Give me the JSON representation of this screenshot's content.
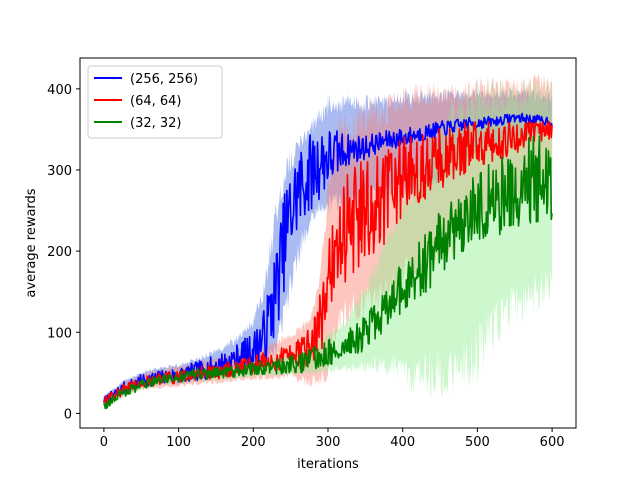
{
  "chart_data": {
    "type": "line",
    "title": "",
    "xlabel": "iterations",
    "ylabel": "average rewards",
    "xlim": [
      -32,
      632
    ],
    "ylim": [
      -18,
      438
    ],
    "x_ticks": [
      0,
      100,
      200,
      300,
      400,
      500,
      600
    ],
    "y_ticks": [
      0,
      100,
      200,
      300,
      400
    ],
    "x_tick_labels": [
      "0",
      "100",
      "200",
      "300",
      "400",
      "500",
      "600"
    ],
    "y_tick_labels": [
      "0",
      "100",
      "200",
      "300",
      "400"
    ],
    "grid": false,
    "legend_position": "upper-left",
    "x_start": 0,
    "x_end": 600,
    "series": [
      {
        "name": "(256, 256)",
        "color": "#0000ff",
        "band_color": "#4169e1",
        "x": [
          0,
          25,
          50,
          75,
          100,
          125,
          150,
          175,
          200,
          215,
          230,
          245,
          260,
          275,
          290,
          300,
          325,
          350,
          375,
          400,
          425,
          450,
          475,
          500,
          525,
          550,
          575,
          600
        ],
        "values": [
          15,
          30,
          40,
          45,
          47,
          52,
          58,
          66,
          78,
          95,
          150,
          230,
          275,
          295,
          310,
          315,
          325,
          328,
          336,
          340,
          345,
          350,
          355,
          358,
          360,
          365,
          362,
          360
        ],
        "noise": [
          5,
          8,
          8,
          8,
          10,
          12,
          14,
          18,
          22,
          35,
          55,
          60,
          55,
          50,
          45,
          40,
          20,
          15,
          12,
          12,
          10,
          10,
          8,
          8,
          6,
          6,
          6,
          6
        ],
        "band_upper": [
          22,
          40,
          52,
          58,
          62,
          70,
          80,
          95,
          120,
          170,
          260,
          320,
          340,
          360,
          380,
          395,
          395,
          395,
          395,
          400,
          400,
          400,
          400,
          400,
          400,
          400,
          400,
          395
        ],
        "band_lower": [
          10,
          22,
          30,
          35,
          35,
          38,
          42,
          48,
          55,
          55,
          65,
          120,
          180,
          220,
          240,
          245,
          250,
          255,
          260,
          265,
          270,
          280,
          300,
          320,
          330,
          335,
          340,
          340
        ]
      },
      {
        "name": "(64, 64)",
        "color": "#ff0000",
        "band_color": "#fa8072",
        "x": [
          0,
          25,
          50,
          75,
          100,
          125,
          150,
          175,
          200,
          225,
          250,
          275,
          290,
          300,
          310,
          325,
          350,
          375,
          400,
          425,
          450,
          475,
          500,
          525,
          550,
          575,
          600
        ],
        "values": [
          15,
          28,
          38,
          42,
          45,
          48,
          52,
          55,
          60,
          65,
          70,
          80,
          110,
          150,
          200,
          230,
          250,
          260,
          290,
          305,
          315,
          325,
          330,
          335,
          340,
          345,
          350
        ],
        "noise": [
          5,
          7,
          7,
          8,
          8,
          9,
          10,
          10,
          12,
          14,
          18,
          25,
          40,
          60,
          70,
          70,
          65,
          60,
          50,
          45,
          40,
          35,
          30,
          25,
          20,
          15,
          12
        ],
        "band_upper": [
          20,
          38,
          50,
          56,
          60,
          65,
          70,
          75,
          80,
          90,
          100,
          120,
          180,
          300,
          370,
          380,
          395,
          400,
          405,
          410,
          410,
          410,
          415,
          415,
          415,
          420,
          415
        ],
        "band_lower": [
          10,
          20,
          28,
          30,
          32,
          34,
          36,
          38,
          40,
          40,
          42,
          30,
          25,
          30,
          80,
          100,
          110,
          120,
          140,
          160,
          180,
          200,
          220,
          240,
          260,
          270,
          280
        ]
      },
      {
        "name": "(32, 32)",
        "color": "#008000",
        "band_color": "#90ee90",
        "x": [
          0,
          25,
          50,
          75,
          100,
          125,
          150,
          175,
          200,
          225,
          250,
          275,
          300,
          325,
          350,
          375,
          400,
          425,
          450,
          475,
          500,
          525,
          550,
          575,
          600
        ],
        "values": [
          8,
          25,
          35,
          42,
          45,
          48,
          50,
          52,
          55,
          58,
          60,
          65,
          75,
          85,
          100,
          125,
          155,
          180,
          210,
          230,
          255,
          265,
          280,
          290,
          285
        ],
        "noise": [
          4,
          6,
          6,
          6,
          7,
          7,
          7,
          8,
          8,
          10,
          12,
          14,
          16,
          18,
          22,
          28,
          32,
          38,
          42,
          45,
          48,
          50,
          52,
          55,
          55
        ],
        "band_upper": [
          14,
          32,
          44,
          50,
          55,
          58,
          60,
          62,
          66,
          70,
          75,
          85,
          100,
          120,
          160,
          220,
          280,
          330,
          370,
          400,
          415,
          420,
          420,
          420,
          415
        ],
        "band_lower": [
          4,
          18,
          28,
          34,
          36,
          38,
          40,
          42,
          44,
          45,
          46,
          48,
          50,
          50,
          50,
          45,
          30,
          20,
          15,
          20,
          30,
          80,
          100,
          120,
          140
        ]
      }
    ]
  }
}
